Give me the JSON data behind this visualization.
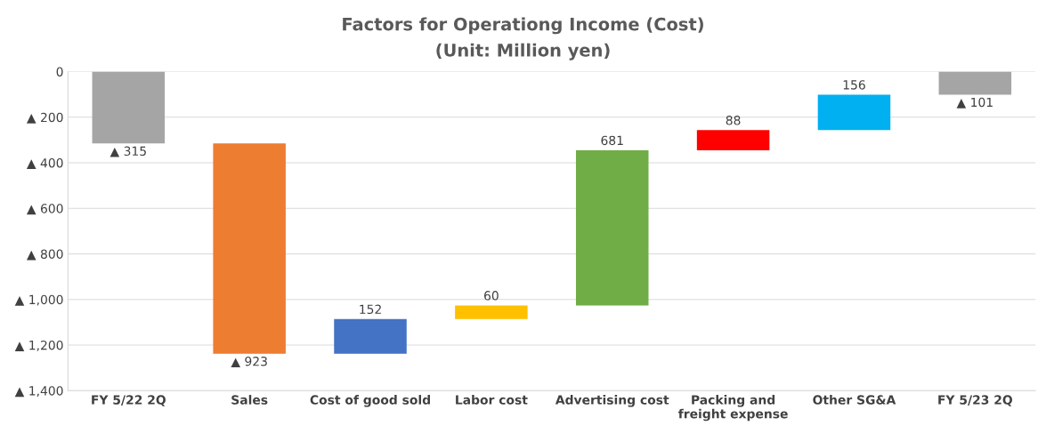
{
  "chart_data": {
    "type": "bar",
    "title": "Factors for Operationg Income (Cost)",
    "subtitle": "(Unit: Million yen)",
    "categories": [
      "FY 5/22 2Q",
      "Sales",
      "Cost of good sold",
      "Labor cost",
      "Advertising cost",
      "Packing and\nfreight expense",
      "Other SG&A",
      "FY 5/23 2Q"
    ],
    "base": [
      0,
      -315,
      -1238,
      -1086,
      -1026,
      -345,
      -257,
      0
    ],
    "values": [
      -315,
      -923,
      152,
      60,
      681,
      88,
      156,
      -101
    ],
    "value_labels": [
      "▲ 315",
      "▲ 923",
      "152",
      "60",
      "681",
      "88",
      "156",
      "▲ 101"
    ],
    "colors": [
      "#a5a5a5",
      "#ed7d31",
      "#4472c4",
      "#ffc000",
      "#70ad47",
      "#ff0000",
      "#00b0f0",
      "#a5a5a5"
    ],
    "ylim": [
      -1400,
      0
    ],
    "yticks": [
      {
        "value": 0,
        "label": "0"
      },
      {
        "value": -200,
        "label": "▲ 200"
      },
      {
        "value": -400,
        "label": "▲ 400"
      },
      {
        "value": -600,
        "label": "▲ 600"
      },
      {
        "value": -800,
        "label": "▲ 800"
      },
      {
        "value": -1000,
        "label": "▲ 1,000"
      },
      {
        "value": -1200,
        "label": "▲ 1,200"
      },
      {
        "value": -1400,
        "label": "▲ 1,400"
      }
    ],
    "grid": "y"
  }
}
